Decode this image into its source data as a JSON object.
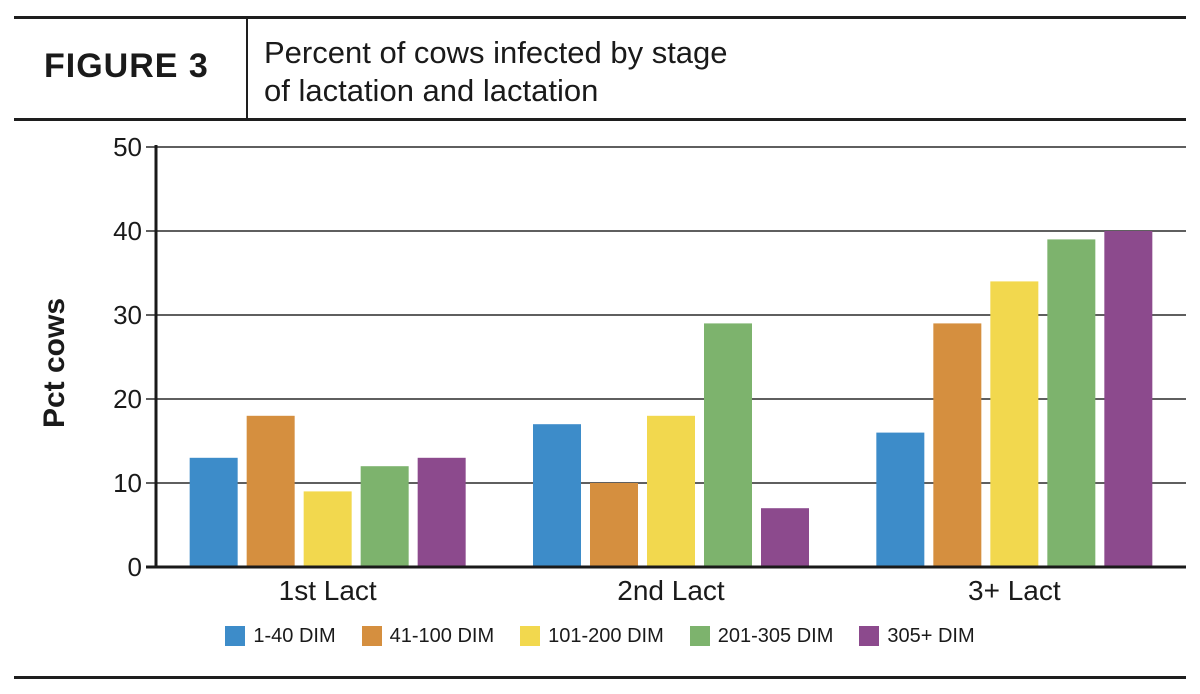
{
  "header": {
    "figure_label": "FIGURE 3",
    "title_line1": "Percent of cows infected by stage",
    "title_line2": "of lactation and lactation"
  },
  "chart_data": {
    "type": "bar",
    "title": "Percent of cows infected by stage of lactation and lactation",
    "xlabel": "",
    "ylabel": "Pct cows",
    "ylim": [
      0,
      50
    ],
    "yticks": [
      0,
      10,
      20,
      30,
      40,
      50
    ],
    "grid": true,
    "legend_position": "bottom",
    "categories": [
      "1st Lact",
      "2nd Lact",
      "3+ Lact"
    ],
    "series": [
      {
        "name": "1-40 DIM",
        "color": "#3d8cc9",
        "values": [
          13,
          17,
          16
        ]
      },
      {
        "name": "41-100 DIM",
        "color": "#d58f3f",
        "values": [
          18,
          10,
          29
        ]
      },
      {
        "name": "101-200 DIM",
        "color": "#f2d84e",
        "values": [
          9,
          18,
          34
        ]
      },
      {
        "name": "201-305 DIM",
        "color": "#7db36d",
        "values": [
          12,
          29,
          39
        ]
      },
      {
        "name": "305+ DIM",
        "color": "#8c4a8d",
        "values": [
          13,
          7,
          40
        ]
      }
    ]
  }
}
